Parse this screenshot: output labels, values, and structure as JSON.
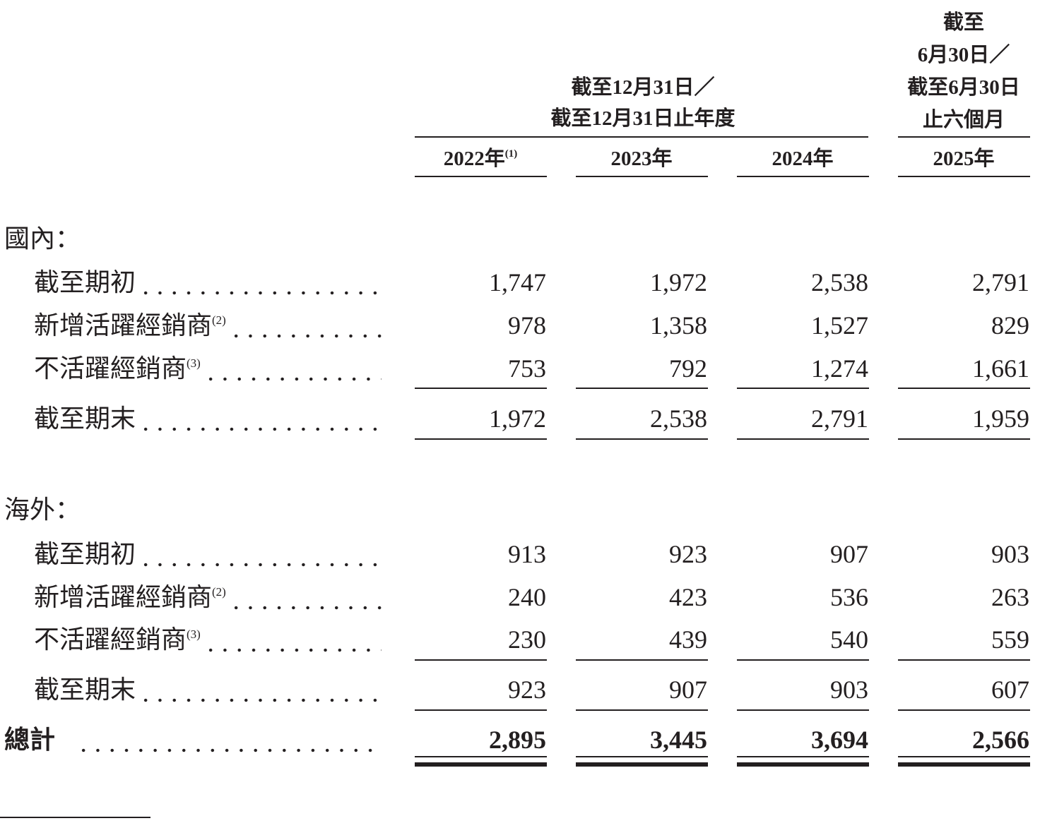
{
  "header": {
    "group1": [
      "截至12月31日／",
      "截至12月31日止年度"
    ],
    "group2": [
      "截至",
      "6月30日／",
      "截至6月30日",
      "止六個月"
    ],
    "years": [
      {
        "label": "2022年",
        "note": "(1)"
      },
      {
        "label": "2023年",
        "note": ""
      },
      {
        "label": "2024年",
        "note": ""
      },
      {
        "label": "2025年",
        "note": ""
      }
    ]
  },
  "sections": [
    {
      "title": "國內：",
      "rows": [
        {
          "label": "截至期初",
          "note": "",
          "values": [
            "1,747",
            "1,972",
            "2,538",
            "2,791"
          ]
        },
        {
          "label": "新增活躍經銷商",
          "note": "(2)",
          "values": [
            "978",
            "1,358",
            "1,527",
            "829"
          ]
        },
        {
          "label": "不活躍經銷商",
          "note": "(3)",
          "values": [
            "753",
            "792",
            "1,274",
            "1,661"
          ]
        },
        {
          "label": "截至期末",
          "note": "",
          "values": [
            "1,972",
            "2,538",
            "2,791",
            "1,959"
          ]
        }
      ]
    },
    {
      "title": "海外：",
      "rows": [
        {
          "label": "截至期初",
          "note": "",
          "values": [
            "913",
            "923",
            "907",
            "903"
          ]
        },
        {
          "label": "新增活躍經銷商",
          "note": "(2)",
          "values": [
            "240",
            "423",
            "536",
            "263"
          ]
        },
        {
          "label": "不活躍經銷商",
          "note": "(3)",
          "values": [
            "230",
            "439",
            "540",
            "559"
          ]
        },
        {
          "label": "截至期末",
          "note": "",
          "values": [
            "923",
            "907",
            "903",
            "607"
          ]
        }
      ]
    }
  ],
  "total": {
    "label": "總計",
    "values": [
      "2,895",
      "3,445",
      "3,694",
      "2,566"
    ]
  }
}
